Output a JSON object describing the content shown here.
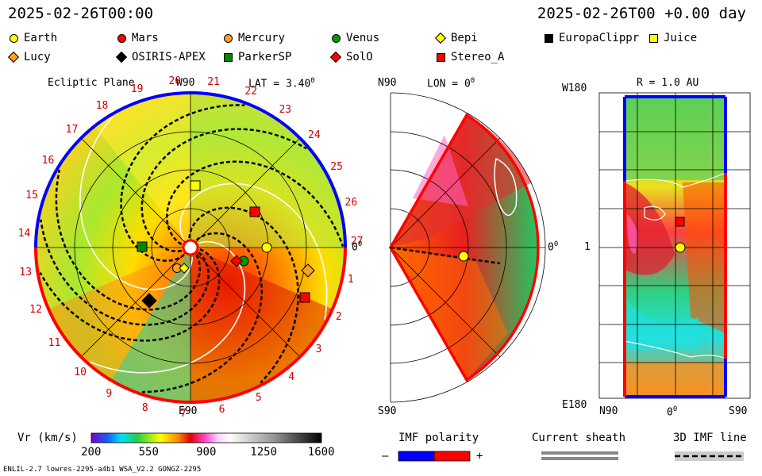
{
  "header": {
    "left_time": "2025-02-26T00:00",
    "right_time": "2025-02-26T00 +0.00 day"
  },
  "legend": [
    {
      "name": "Earth",
      "shape": "circle",
      "color": "#ffff00"
    },
    {
      "name": "Mars",
      "shape": "circle",
      "color": "#ff0000"
    },
    {
      "name": "Mercury",
      "shape": "circle",
      "color": "#ffa020"
    },
    {
      "name": "Venus",
      "shape": "circle",
      "color": "#009900"
    },
    {
      "name": "Bepi",
      "shape": "diamond",
      "color": "#ffff00"
    },
    {
      "name": "EuropaClippr",
      "shape": "square",
      "color": "#000000"
    },
    {
      "name": "Juice",
      "shape": "square",
      "color": "#ffff00"
    },
    {
      "name": "Lucy",
      "shape": "diamond",
      "color": "#ffa020"
    },
    {
      "name": "OSIRIS-APEX",
      "shape": "diamond",
      "color": "#000000"
    },
    {
      "name": "ParkerSP",
      "shape": "square",
      "color": "#008800"
    },
    {
      "name": "SolO",
      "shape": "diamond",
      "color": "#ff0000"
    },
    {
      "name": "Stereo_A",
      "shape": "square",
      "color": "#ff0000"
    }
  ],
  "panel_ecliptic": {
    "title": "Ecliptic Plane",
    "top_label": "W90",
    "lat_label": "LAT = 3.40",
    "lat_sup": "0",
    "bottom_label": "E90",
    "right_label": "0",
    "right_sup": "0",
    "carrington_ticks": [
      "1",
      "2",
      "3",
      "4",
      "5",
      "6",
      "7",
      "8",
      "9",
      "10",
      "11",
      "12",
      "13",
      "14",
      "15",
      "16",
      "17",
      "18",
      "19",
      "20",
      "21",
      "22",
      "23",
      "24",
      "25",
      "26",
      "27"
    ]
  },
  "panel_meridional": {
    "top_label": "N90",
    "lon_label": "LON = 0",
    "lon_sup": "0",
    "right_label": "0",
    "right_sup": "0",
    "bottom_label": "S90"
  },
  "panel_radial": {
    "title": "R = 1.0 AU",
    "top_left": "W180",
    "mid_left": "1",
    "bottom_left": "E180",
    "x_left": "N90",
    "x_mid": "0",
    "x_mid_sup": "0",
    "x_right": "S90"
  },
  "colorbar": {
    "label": "Vr (km/s)",
    "ticks": [
      "200",
      "550",
      "900",
      "1250",
      "1600"
    ],
    "range": [
      200,
      1600
    ]
  },
  "imf": {
    "label": "IMF polarity",
    "minus": "–",
    "plus": "+",
    "colors": [
      "#0000ff",
      "#ff0000"
    ]
  },
  "sheath": {
    "label": "Current sheath"
  },
  "imf3d": {
    "label": "3D IMF line"
  },
  "footer": {
    "left": "ENLIL-2.7 lowres-2295-a4b1 WSA_V2.2 GONGZ-2295"
  }
}
